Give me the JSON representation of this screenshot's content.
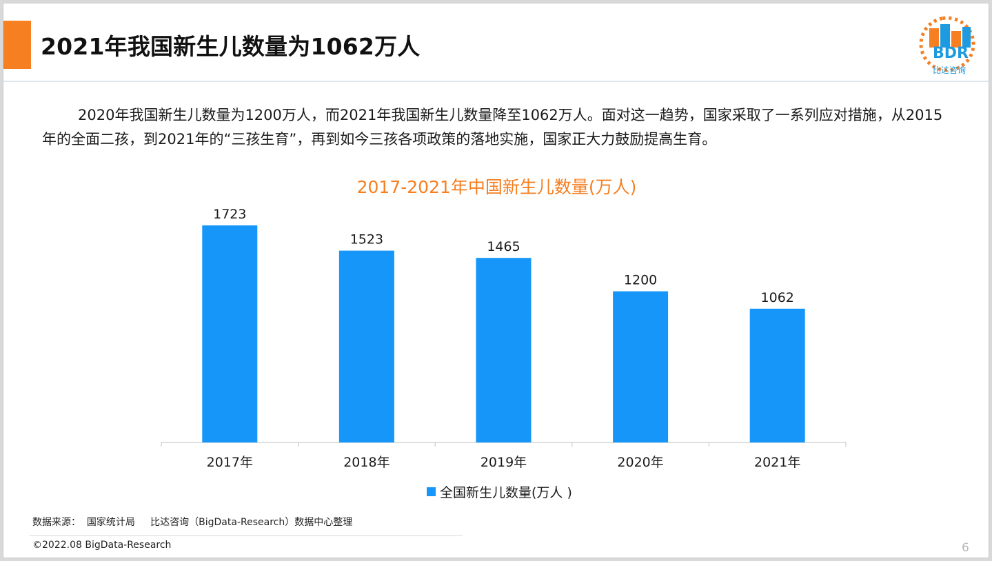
{
  "header": {
    "title": "2021年我国新生儿数量为1062万人",
    "accent_color": "#f57f21"
  },
  "logo": {
    "mark": "BDR",
    "name": "比达咨询",
    "icon": "bdr-logo-icon"
  },
  "intro": {
    "text": "2020年我国新生儿数量为1200万人，而2021年我国新生儿数量降至1062万人。面对这一趋势，国家采取了一系列应对措施，从2015年的全面二孩，到2021年的“三孩生育”，再到如今三孩各项政策的落地实施，国家正大力鼓励提高生育。"
  },
  "chart_data": {
    "type": "bar",
    "title": "2017-2021年中国新生儿数量(万人)",
    "categories": [
      "2017年",
      "2018年",
      "2019年",
      "2020年",
      "2021年"
    ],
    "series": [
      {
        "name": "全国新生儿数量(万人 )",
        "values": [
          1723,
          1523,
          1465,
          1200,
          1062
        ],
        "color": "#1596f8"
      }
    ],
    "ylim": [
      0,
      1800
    ],
    "grid": false,
    "data_labels": true,
    "legend": "bottom-center",
    "title_color": "#f57f21"
  },
  "footer": {
    "source": "数据来源：  国家统计局     比达咨询（BigData-Research）数据中心整理",
    "copyright": "©2022.08 BigData-Research",
    "page_number": "6"
  }
}
